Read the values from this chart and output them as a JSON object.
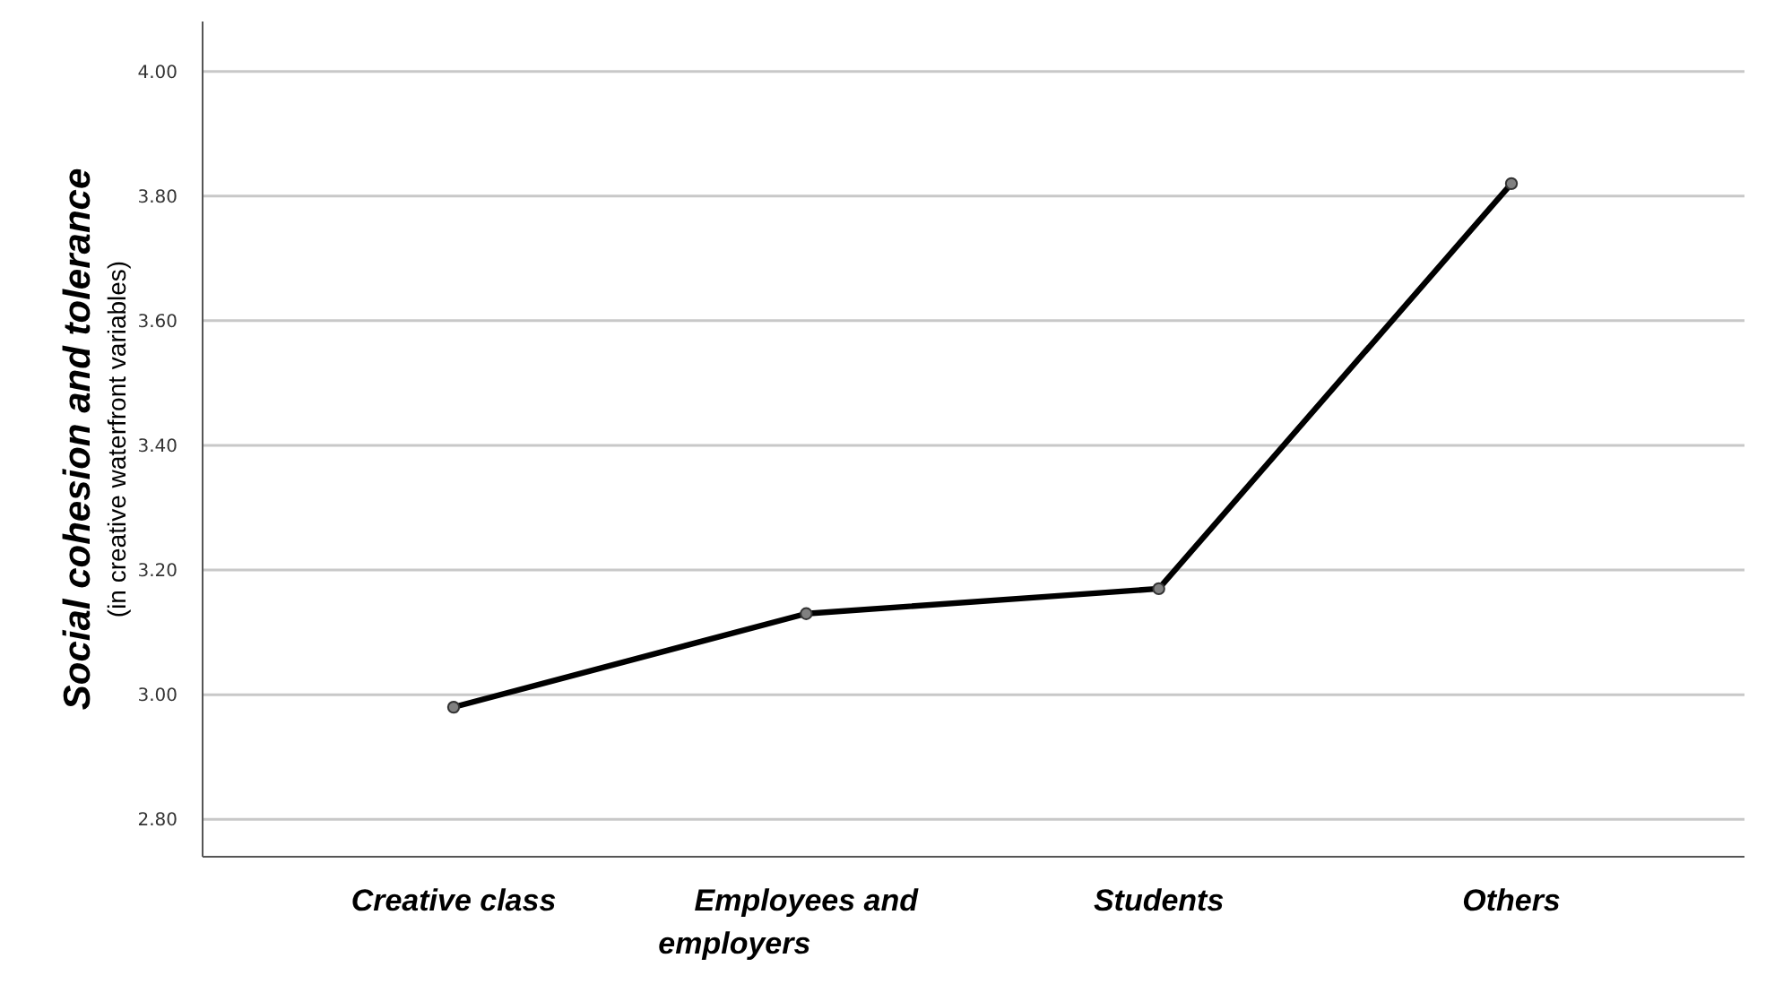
{
  "chart_data": {
    "type": "line",
    "ylabel": "Social cohesion and tolerance\n(in creative waterfront variables)",
    "categories": [
      "Creative class",
      "Employees and employers",
      "Students",
      "Others"
    ],
    "series": [
      {
        "color": "#000000",
        "values": [
          2.98,
          3.13,
          3.17,
          3.82
        ]
      }
    ],
    "ylim": [
      2.74,
      4.08
    ],
    "yticks": [
      {
        "value": 2.8,
        "label": "2.80"
      },
      {
        "value": 3,
        "label": "3.00"
      },
      {
        "value": 3.2,
        "label": "3.20"
      },
      {
        "value": 3.4,
        "label": "3.40"
      },
      {
        "value": 3.6,
        "label": "3.60"
      },
      {
        "value": 3.8,
        "label": "3.80"
      },
      {
        "value": 4,
        "label": "4.00"
      }
    ],
    "grid": "y",
    "marker": "circle",
    "line_style": "solid"
  }
}
